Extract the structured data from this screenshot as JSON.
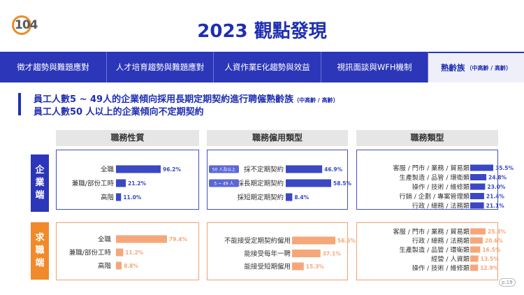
{
  "logo": {
    "text": "104"
  },
  "title": "2023 觀點發現",
  "nav": [
    {
      "label": "徵才趨勢與難題應對",
      "sub": ""
    },
    {
      "label": "人才培育趨勢與難題應對",
      "sub": ""
    },
    {
      "label": "人資作業E化趨勢與效益",
      "sub": ""
    },
    {
      "label": "視訊面談與WFH機制",
      "sub": ""
    },
    {
      "label": "熟齡族",
      "sub": "（中高齡 / 高齡）"
    }
  ],
  "headline": {
    "line1": "員工人數5 ~ 49人的企業傾向採用長期定期契約進行聘僱熟齡族",
    "line1_small": "（中高齡 / 高齡）",
    "line2": "員工人數50 人以上的企業傾向不定期契約"
  },
  "columns": [
    "職務性質",
    "職務僱用類型",
    "職務類型"
  ],
  "side_labels": {
    "enterprise": [
      "企",
      "業",
      "端"
    ],
    "seeker": [
      "求",
      "職",
      "端"
    ]
  },
  "colors": {
    "blue": "#3a48c4",
    "orange": "#f5a77a"
  },
  "chart_data": [
    {
      "type": "bar",
      "group": "企業端",
      "title": "職務性質",
      "categories": [
        "全職",
        "兼職/部份工時",
        "高階"
      ],
      "values": [
        96.2,
        21.2,
        11.0
      ],
      "labels": [
        "96.2%",
        "21.2%",
        "11.0%"
      ],
      "xlim": [
        0,
        100
      ]
    },
    {
      "type": "bar",
      "group": "企業端",
      "title": "職務僱用類型",
      "categories": [
        "採不定期契約",
        "採長期定期契約",
        "採短期定期契約"
      ],
      "values": [
        46.9,
        58.5,
        8.4
      ],
      "labels": [
        "46.9%",
        "58.5%",
        "8.4%"
      ],
      "tags": [
        "50 人及以上",
        "5 ~ 49 人",
        ""
      ],
      "xlim": [
        0,
        100
      ]
    },
    {
      "type": "bar",
      "group": "企業端",
      "title": "職務類型",
      "categories": [
        "客服 / 門市 / 業務 / 貿易類",
        "生產製造 / 品管 / 環衛類",
        "操作 / 技術 / 維修類",
        "行銷 / 企劃 / 專案管理類",
        "行政 / 總務 / 法務類"
      ],
      "values": [
        35.5,
        24.8,
        23.0,
        21.4,
        21.1
      ],
      "labels": [
        "35.5%",
        "24.8%",
        "23.0%",
        "21.4%",
        "21.1%"
      ],
      "xlim": [
        0,
        100
      ]
    },
    {
      "type": "bar",
      "group": "求職端",
      "title": "職務性質",
      "categories": [
        "全職",
        "兼職/部份工時",
        "高階"
      ],
      "values": [
        79.4,
        11.2,
        8.8
      ],
      "labels": [
        "79.4%",
        "11.2%",
        "8.8%"
      ],
      "xlim": [
        0,
        100
      ]
    },
    {
      "type": "bar",
      "group": "求職端",
      "title": "職務僱用類型",
      "categories": [
        "不能接受定期契約僱用",
        "能接受每年一聘",
        "能接受短期僱用"
      ],
      "values": [
        56.5,
        37.1,
        15.3
      ],
      "labels": [
        "56.5%",
        "37.1%",
        "15.3%"
      ],
      "xlim": [
        0,
        100
      ]
    },
    {
      "type": "bar",
      "group": "求職端",
      "title": "職務類型",
      "categories": [
        "客服 / 門市 / 業務 / 貿易類",
        "行政 / 總務 / 法務類",
        "生產製造 / 品管 / 環衛類",
        "經營 / 人資類",
        "操作 / 技術 / 維修類"
      ],
      "values": [
        25.3,
        20.6,
        16.5,
        13.5,
        12.9
      ],
      "labels": [
        "25.3%",
        "20.6%",
        "16.5%",
        "13.5%",
        "12.9%"
      ],
      "xlim": [
        0,
        100
      ]
    }
  ],
  "page": "p.19"
}
